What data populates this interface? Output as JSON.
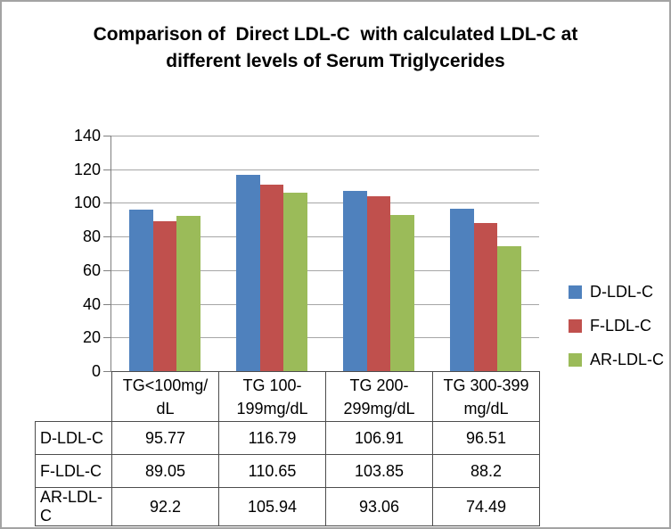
{
  "chart_data": {
    "type": "bar",
    "title": "Comparison of  Direct LDL-C  with calculated LDL-C at\ndifferent levels of Serum Triglycerides",
    "categories": [
      "TG<100mg/dL",
      "TG 100-199mg/dL",
      "TG 200-299mg/dL",
      "TG 300-399 mg/dL"
    ],
    "categories_display": [
      "TG<100mg/\ndL",
      "TG 100-\n199mg/dL",
      "TG 200-\n299mg/dL",
      "TG 300-399\nmg/dL"
    ],
    "series": [
      {
        "name": "D-LDL-C",
        "color": "#4f81bd",
        "values": [
          95.77,
          116.79,
          106.91,
          96.51
        ]
      },
      {
        "name": "F-LDL-C",
        "color": "#c0504d",
        "values": [
          89.05,
          110.65,
          103.85,
          88.2
        ]
      },
      {
        "name": "AR-LDL-C",
        "color": "#9bbb59",
        "values": [
          92.2,
          105.94,
          93.06,
          74.49
        ]
      }
    ],
    "xlabel": "",
    "ylabel": "",
    "ylim": [
      0,
      140
    ],
    "ytick_step": 20,
    "yticks": [
      0,
      20,
      40,
      60,
      80,
      100,
      120,
      140
    ],
    "grid": true,
    "legend_position": "right",
    "data_table_shown": true
  },
  "palette": {
    "gridline": "#a6a6a6",
    "axis": "#7f7f7f",
    "table_border": "#4d4d4d",
    "figure_border": "#a3a3a3",
    "background": "#ffffff",
    "text": "#000000"
  }
}
